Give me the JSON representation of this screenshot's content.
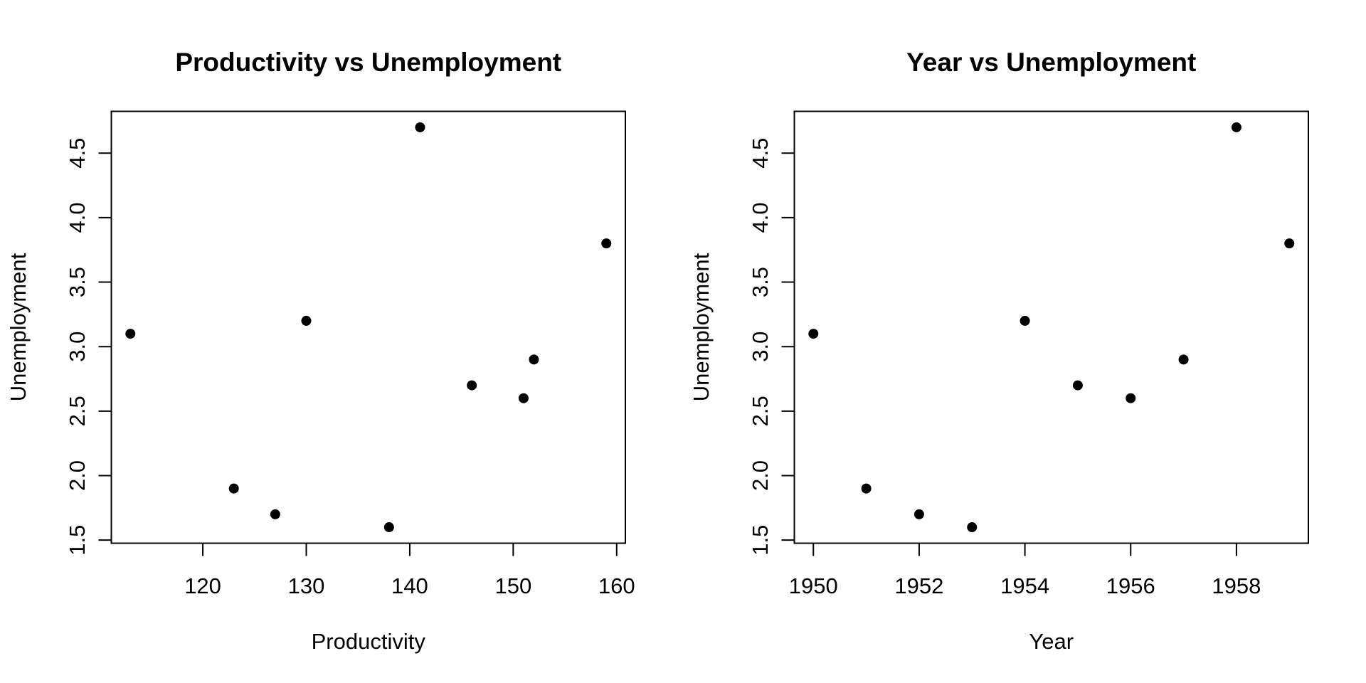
{
  "page": {
    "background_color": "#ffffff",
    "foreground_color": "#000000"
  },
  "chart_data": [
    {
      "type": "scatter",
      "title": "Productivity vs Unemployment",
      "xlabel": "Productivity",
      "ylabel": "Unemployment",
      "xlim": [
        111.16,
        160.84
      ],
      "ylim": [
        1.476,
        4.824
      ],
      "xticks": {
        "values": [
          120,
          130,
          140,
          150,
          160
        ],
        "labels": [
          "120",
          "130",
          "140",
          "150",
          "160"
        ]
      },
      "yticks": {
        "values": [
          1.5,
          2.0,
          2.5,
          3.0,
          3.5,
          4.0,
          4.5
        ],
        "labels": [
          "1.5",
          "2.0",
          "2.5",
          "3.0",
          "3.5",
          "4.0",
          "4.5"
        ]
      },
      "grid": false,
      "legend": null,
      "marker": {
        "shape": "filled-circle",
        "color": "#000000"
      },
      "points": [
        {
          "x": 113,
          "y": 3.1
        },
        {
          "x": 123,
          "y": 1.9
        },
        {
          "x": 127,
          "y": 1.7
        },
        {
          "x": 130,
          "y": 3.2
        },
        {
          "x": 138,
          "y": 1.6
        },
        {
          "x": 141,
          "y": 4.7
        },
        {
          "x": 146,
          "y": 2.7
        },
        {
          "x": 151,
          "y": 2.6
        },
        {
          "x": 152,
          "y": 2.9
        },
        {
          "x": 159,
          "y": 3.8
        }
      ]
    },
    {
      "type": "scatter",
      "title": "Year vs Unemployment",
      "xlabel": "Year",
      "ylabel": "Unemployment",
      "xlim": [
        1949.64,
        1959.36
      ],
      "ylim": [
        1.476,
        4.824
      ],
      "xticks": {
        "values": [
          1950,
          1952,
          1954,
          1956,
          1958
        ],
        "labels": [
          "1950",
          "1952",
          "1954",
          "1956",
          "1958"
        ]
      },
      "yticks": {
        "values": [
          1.5,
          2.0,
          2.5,
          3.0,
          3.5,
          4.0,
          4.5
        ],
        "labels": [
          "1.5",
          "2.0",
          "2.5",
          "3.0",
          "3.5",
          "4.0",
          "4.5"
        ]
      },
      "grid": false,
      "legend": null,
      "marker": {
        "shape": "filled-circle",
        "color": "#000000"
      },
      "points": [
        {
          "x": 1950,
          "y": 3.1
        },
        {
          "x": 1951,
          "y": 1.9
        },
        {
          "x": 1952,
          "y": 1.7
        },
        {
          "x": 1953,
          "y": 1.6
        },
        {
          "x": 1954,
          "y": 3.2
        },
        {
          "x": 1955,
          "y": 2.7
        },
        {
          "x": 1956,
          "y": 2.6
        },
        {
          "x": 1957,
          "y": 2.9
        },
        {
          "x": 1958,
          "y": 4.7
        },
        {
          "x": 1959,
          "y": 3.8
        }
      ]
    }
  ]
}
